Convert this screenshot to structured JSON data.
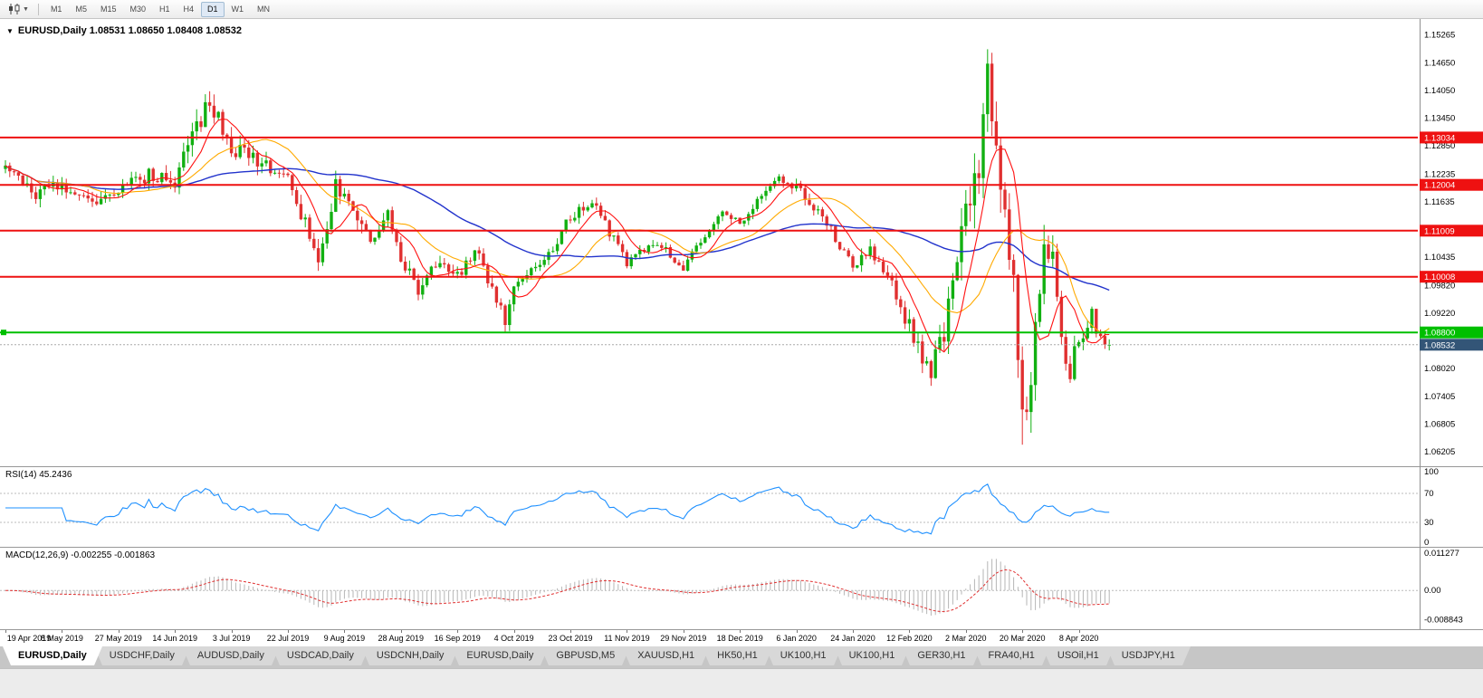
{
  "toolbar": {
    "timeframes": [
      "M1",
      "M5",
      "M15",
      "M30",
      "H1",
      "H4",
      "D1",
      "W1",
      "MN"
    ],
    "active_timeframe": "D1"
  },
  "chart": {
    "symbol": "EURUSD",
    "period": "Daily",
    "header": "EURUSD,Daily 1.08531 1.08650 1.08408 1.08532",
    "open": "1.08531",
    "high": "1.08650",
    "low": "1.08408",
    "close": "1.08532",
    "price_axis": {
      "min": 1.0605,
      "max": 1.1545,
      "ticks": [
        "1.15265",
        "1.14650",
        "1.14050",
        "1.13450",
        "1.12850",
        "1.12235",
        "1.11635",
        "1.10435",
        "1.09820",
        "1.09220",
        "1.08020",
        "1.07405",
        "1.06805",
        "1.06205"
      ]
    },
    "hlines": [
      {
        "price": 1.13034,
        "label": "1.13034",
        "color": "#ee1111",
        "width": 2
      },
      {
        "price": 1.12004,
        "label": "1.12004",
        "color": "#ee1111",
        "width": 2
      },
      {
        "price": 1.11009,
        "label": "1.11009",
        "color": "#ee1111",
        "width": 2
      },
      {
        "price": 1.10008,
        "label": "1.10008",
        "color": "#ee1111",
        "width": 2
      },
      {
        "price": 1.088,
        "label": "1.08800",
        "color": "#00bf00",
        "width": 2,
        "handle": true
      }
    ],
    "current_price": {
      "value": 1.08532,
      "label": "1.08532",
      "badge_color": "#335577",
      "line_color": "#aaaaaa"
    },
    "colors": {
      "up": "#11b011",
      "down": "#e03030",
      "ma_fast": "#ff1111",
      "ma_mid": "#ffaa00",
      "ma_slow": "#2233cc"
    },
    "ma_periods": {
      "fast": 8,
      "mid": 20,
      "slow": 55
    },
    "candle_count": 255,
    "last_candle": {
      "o": 1.08531,
      "h": 1.0865,
      "l": 1.08408,
      "c": 1.08532
    },
    "spikes": [
      {
        "index": 115,
        "low": 1.0879
      },
      {
        "index": 226,
        "high": 1.1495
      },
      {
        "index": 234,
        "low": 1.0636
      }
    ],
    "anchors": [
      [
        0,
        1.1235,
        0.0035
      ],
      [
        6,
        1.118,
        0.0035
      ],
      [
        13,
        1.1198,
        0.003
      ],
      [
        20,
        1.1158,
        0.003
      ],
      [
        26,
        1.1192,
        0.003
      ],
      [
        33,
        1.1222,
        0.0035
      ],
      [
        39,
        1.1212,
        0.004
      ],
      [
        44,
        1.133,
        0.005
      ],
      [
        47,
        1.138,
        0.005
      ],
      [
        52,
        1.1282,
        0.004
      ],
      [
        58,
        1.1252,
        0.0035
      ],
      [
        65,
        1.1212,
        0.0035
      ],
      [
        72,
        1.1042,
        0.004
      ],
      [
        76,
        1.1195,
        0.0045
      ],
      [
        84,
        1.1085,
        0.0035
      ],
      [
        88,
        1.114,
        0.003
      ],
      [
        91,
        1.1042,
        0.0035
      ],
      [
        95,
        1.0972,
        0.003
      ],
      [
        100,
        1.104,
        0.003
      ],
      [
        104,
        1.1002,
        0.003
      ],
      [
        108,
        1.1062,
        0.003
      ],
      [
        115,
        1.0902,
        0.0035
      ],
      [
        117,
        1.0982,
        0.003
      ],
      [
        124,
        1.1032,
        0.0025
      ],
      [
        130,
        1.1132,
        0.0025
      ],
      [
        135,
        1.1162,
        0.0025
      ],
      [
        143,
        1.1032,
        0.0025
      ],
      [
        150,
        1.1076,
        0.002
      ],
      [
        156,
        1.1022,
        0.002
      ],
      [
        160,
        1.1082,
        0.002
      ],
      [
        165,
        1.1136,
        0.002
      ],
      [
        169,
        1.1116,
        0.002
      ],
      [
        177,
        1.1216,
        0.0025
      ],
      [
        182,
        1.1196,
        0.0025
      ],
      [
        188,
        1.1132,
        0.0025
      ],
      [
        195,
        1.1026,
        0.0025
      ],
      [
        199,
        1.1062,
        0.003
      ],
      [
        203,
        1.1002,
        0.003
      ],
      [
        208,
        1.0892,
        0.004
      ],
      [
        213,
        1.0792,
        0.005
      ],
      [
        216,
        1.0882,
        0.006
      ],
      [
        219,
        1.1032,
        0.007
      ],
      [
        221,
        1.1136,
        0.009
      ],
      [
        224,
        1.1242,
        0.01
      ],
      [
        226,
        1.1452,
        0.011
      ],
      [
        228,
        1.1272,
        0.011
      ],
      [
        230,
        1.1112,
        0.01
      ],
      [
        232,
        1.0996,
        0.01
      ],
      [
        234,
        1.0692,
        0.01
      ],
      [
        236,
        1.0792,
        0.009
      ],
      [
        239,
        1.1102,
        0.008
      ],
      [
        241,
        1.1032,
        0.007
      ],
      [
        243,
        1.0857,
        0.006
      ],
      [
        245,
        1.0792,
        0.005
      ],
      [
        247,
        1.0872,
        0.005
      ],
      [
        250,
        1.0916,
        0.004
      ],
      [
        252,
        1.0872,
        0.0035
      ],
      [
        254,
        1.0853,
        0.003
      ]
    ]
  },
  "rsi": {
    "label": "RSI(14) 45.2436",
    "period": 14,
    "value": "45.2436",
    "color": "#1e90ff",
    "levels": [
      70,
      30
    ],
    "axis_labels": [
      "100",
      "70",
      "30",
      "0"
    ]
  },
  "macd": {
    "label": "MACD(12,26,9) -0.002255 -0.001863",
    "main_value": "-0.002255",
    "signal_value": "-0.001863",
    "hist_color": "#b6b6b6",
    "signal_color": "#e03030",
    "axis_labels": [
      {
        "text": "0.011277",
        "value": 0.011277
      },
      {
        "text": "0.00",
        "value": 0
      },
      {
        "text": "-0.008843",
        "value": -0.008843
      }
    ]
  },
  "time_axis": {
    "candles_per_label": 13,
    "labels": [
      "19 Apr 2019",
      "8 May 2019",
      "27 May 2019",
      "14 Jun 2019",
      "3 Jul 2019",
      "22 Jul 2019",
      "9 Aug 2019",
      "28 Aug 2019",
      "16 Sep 2019",
      "4 Oct 2019",
      "23 Oct 2019",
      "11 Nov 2019",
      "29 Nov 2019",
      "18 Dec 2019",
      "6 Jan 2020",
      "24 Jan 2020",
      "12 Feb 2020",
      "2 Mar 2020",
      "20 Mar 2020",
      "8 Apr 2020"
    ]
  },
  "tabs": [
    {
      "label": "EURUSD,Daily",
      "active": true
    },
    {
      "label": "USDCHF,Daily"
    },
    {
      "label": "AUDUSD,Daily"
    },
    {
      "label": "USDCAD,Daily"
    },
    {
      "label": "USDCNH,Daily"
    },
    {
      "label": "EURUSD,Daily"
    },
    {
      "label": "GBPUSD,M5"
    },
    {
      "label": "XAUUSD,H1"
    },
    {
      "label": "HK50,H1"
    },
    {
      "label": "UK100,H1"
    },
    {
      "label": "UK100,H1"
    },
    {
      "label": "GER30,H1"
    },
    {
      "label": "FRA40,H1"
    },
    {
      "label": "USOil,H1"
    },
    {
      "label": "USDJPY,H1"
    }
  ]
}
